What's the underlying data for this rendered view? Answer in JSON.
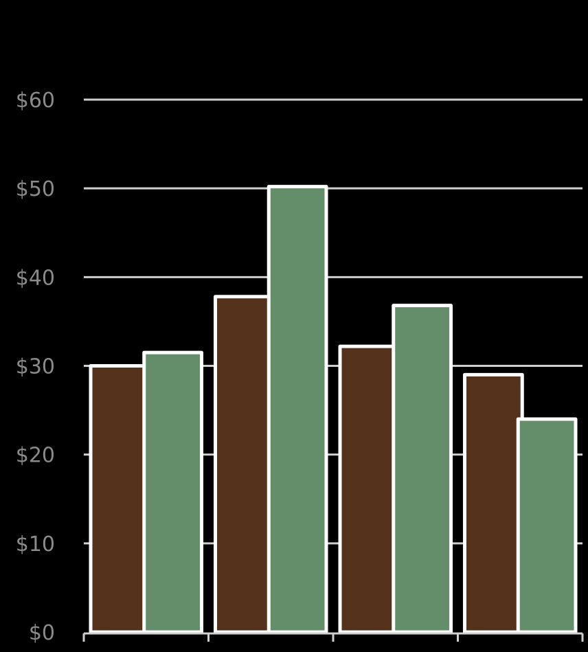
{
  "chart_data": {
    "type": "bar",
    "categories": [
      "",
      "",
      "",
      ""
    ],
    "series": [
      {
        "values": [
          30,
          37.8,
          32.2,
          29
        ],
        "color": "#54321c"
      },
      {
        "values": [
          31.5,
          50.2,
          36.8,
          24
        ],
        "color": "#638e69"
      }
    ],
    "y_ticks": [
      "$0",
      "$10",
      "$20",
      "$30",
      "$40",
      "$50",
      "$60"
    ],
    "ylim": [
      0,
      60
    ],
    "grid": true,
    "background_color": "#000000",
    "gridline_color": "#cfcfcf",
    "bar_outline_color": "#ffffff",
    "tick_label_color": "#8a8a8a"
  }
}
